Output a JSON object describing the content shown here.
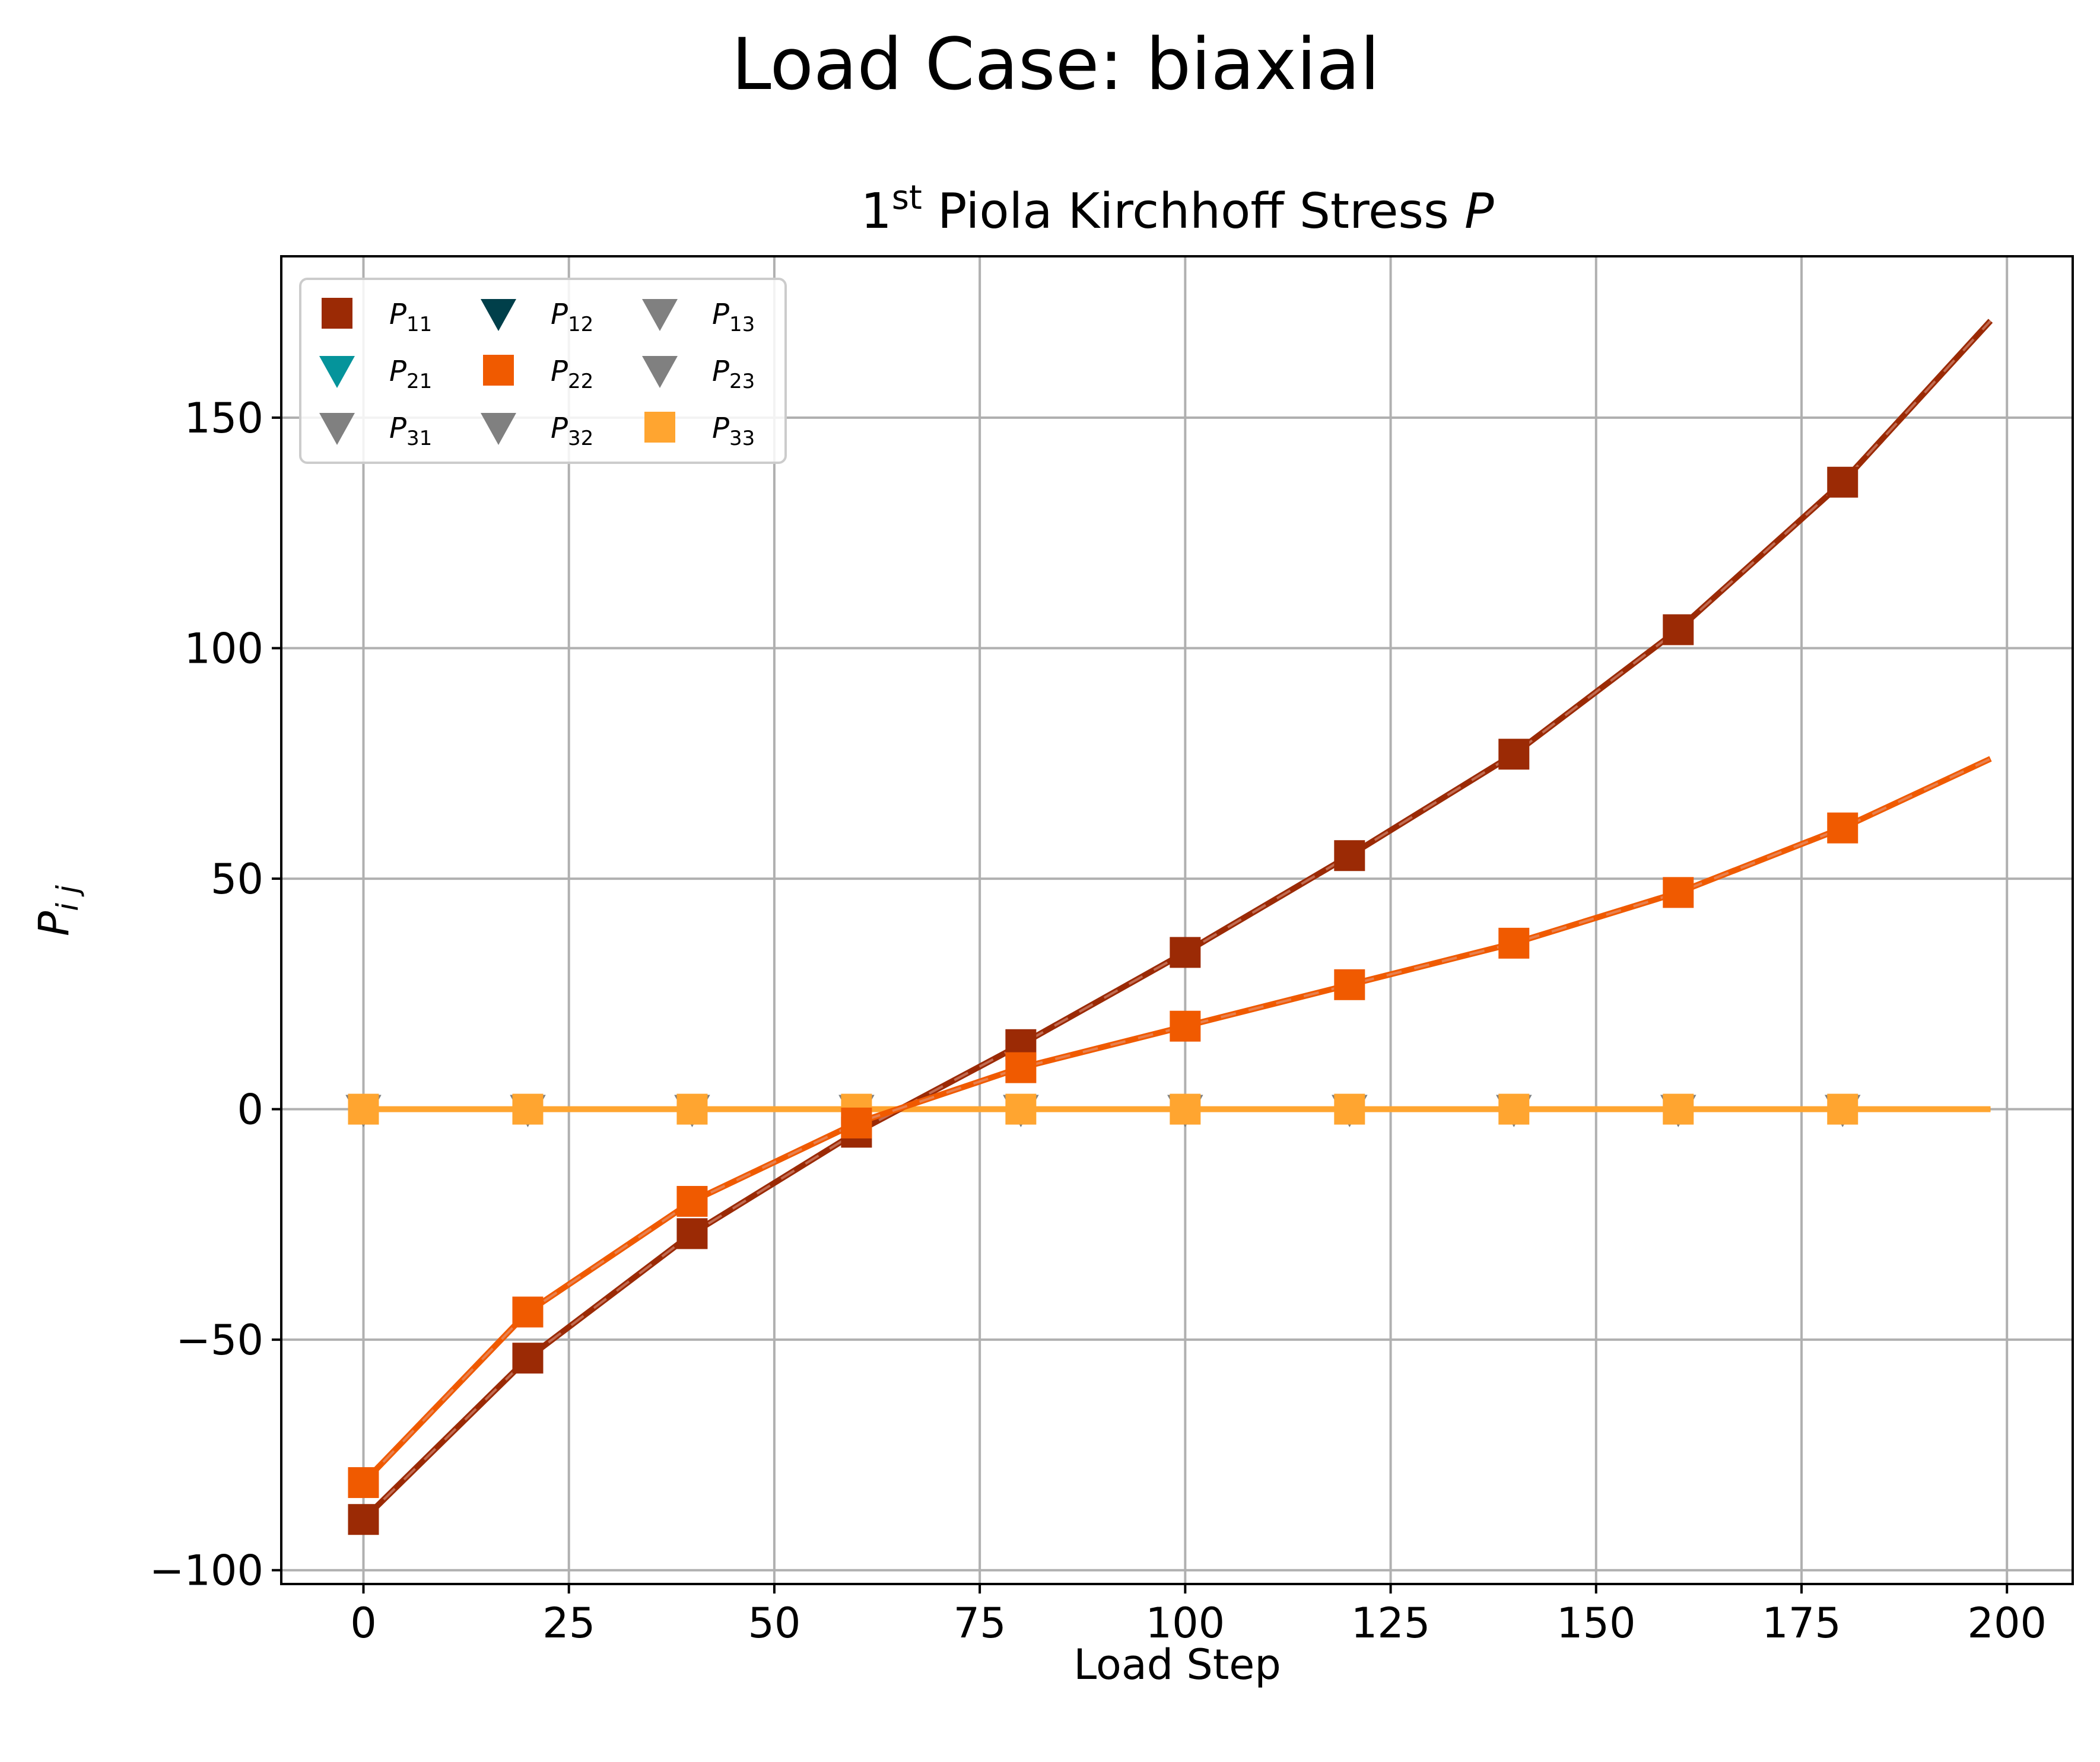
{
  "chart_data": {
    "type": "line",
    "suptitle": "Load Case: biaxial",
    "title": {
      "base": "1",
      "sup": "st",
      "rest": " Piola Kirchhoff Stress ",
      "var": "P"
    },
    "xlabel": "Load Step",
    "ylabel": {
      "base": "P",
      "sub": "i j"
    },
    "xlim": [
      -10,
      208
    ],
    "ylim": [
      -103,
      185
    ],
    "xticks": [
      0,
      25,
      50,
      75,
      100,
      125,
      150,
      175,
      200
    ],
    "xtick_labels": [
      "0",
      "25",
      "50",
      "75",
      "100",
      "125",
      "150",
      "175",
      "200"
    ],
    "yticks": [
      -100,
      -50,
      0,
      50,
      100,
      150
    ],
    "ytick_labels": [
      "−100",
      "−50",
      "0",
      "50",
      "100",
      "150"
    ],
    "grid": true,
    "legend_position": "upper-left",
    "legend_columns": 3,
    "x": [
      0,
      20,
      40,
      60,
      80,
      100,
      120,
      140,
      160,
      180,
      198
    ],
    "series": [
      {
        "name": "P",
        "sub": "11",
        "color": "#9b2a05",
        "marker": "square",
        "values": [
          -89,
          -54,
          -27,
          -5,
          14,
          34,
          55,
          77,
          104,
          136,
          171
        ]
      },
      {
        "name": "P",
        "sub": "12",
        "color": "#003f4a",
        "marker": "triangle-down",
        "values": [
          0,
          0,
          0,
          0,
          0,
          0,
          0,
          0,
          0,
          0,
          0
        ]
      },
      {
        "name": "P",
        "sub": "13",
        "color": "#808080",
        "marker": "triangle-down",
        "values": [
          0,
          0,
          0,
          0,
          0,
          0,
          0,
          0,
          0,
          0,
          0
        ]
      },
      {
        "name": "P",
        "sub": "21",
        "color": "#05949b",
        "marker": "triangle-down",
        "values": [
          0,
          0,
          0,
          0,
          0,
          0,
          0,
          0,
          0,
          0,
          0
        ]
      },
      {
        "name": "P",
        "sub": "22",
        "color": "#f05a00",
        "marker": "square",
        "values": [
          -81,
          -44,
          -20,
          -3,
          9,
          18,
          27,
          36,
          47,
          61,
          76
        ]
      },
      {
        "name": "P",
        "sub": "23",
        "color": "#808080",
        "marker": "triangle-down",
        "values": [
          0,
          0,
          0,
          0,
          0,
          0,
          0,
          0,
          0,
          0,
          0
        ]
      },
      {
        "name": "P",
        "sub": "31",
        "color": "#808080",
        "marker": "triangle-down",
        "values": [
          0,
          0,
          0,
          0,
          0,
          0,
          0,
          0,
          0,
          0,
          0
        ]
      },
      {
        "name": "P",
        "sub": "32",
        "color": "#808080",
        "marker": "triangle-down",
        "values": [
          0,
          0,
          0,
          0,
          0,
          0,
          0,
          0,
          0,
          0,
          0
        ]
      },
      {
        "name": "P",
        "sub": "33",
        "color": "#ffa530",
        "marker": "square",
        "values": [
          0,
          0,
          0,
          0,
          0,
          0,
          0,
          0,
          0,
          0,
          0
        ]
      }
    ]
  }
}
